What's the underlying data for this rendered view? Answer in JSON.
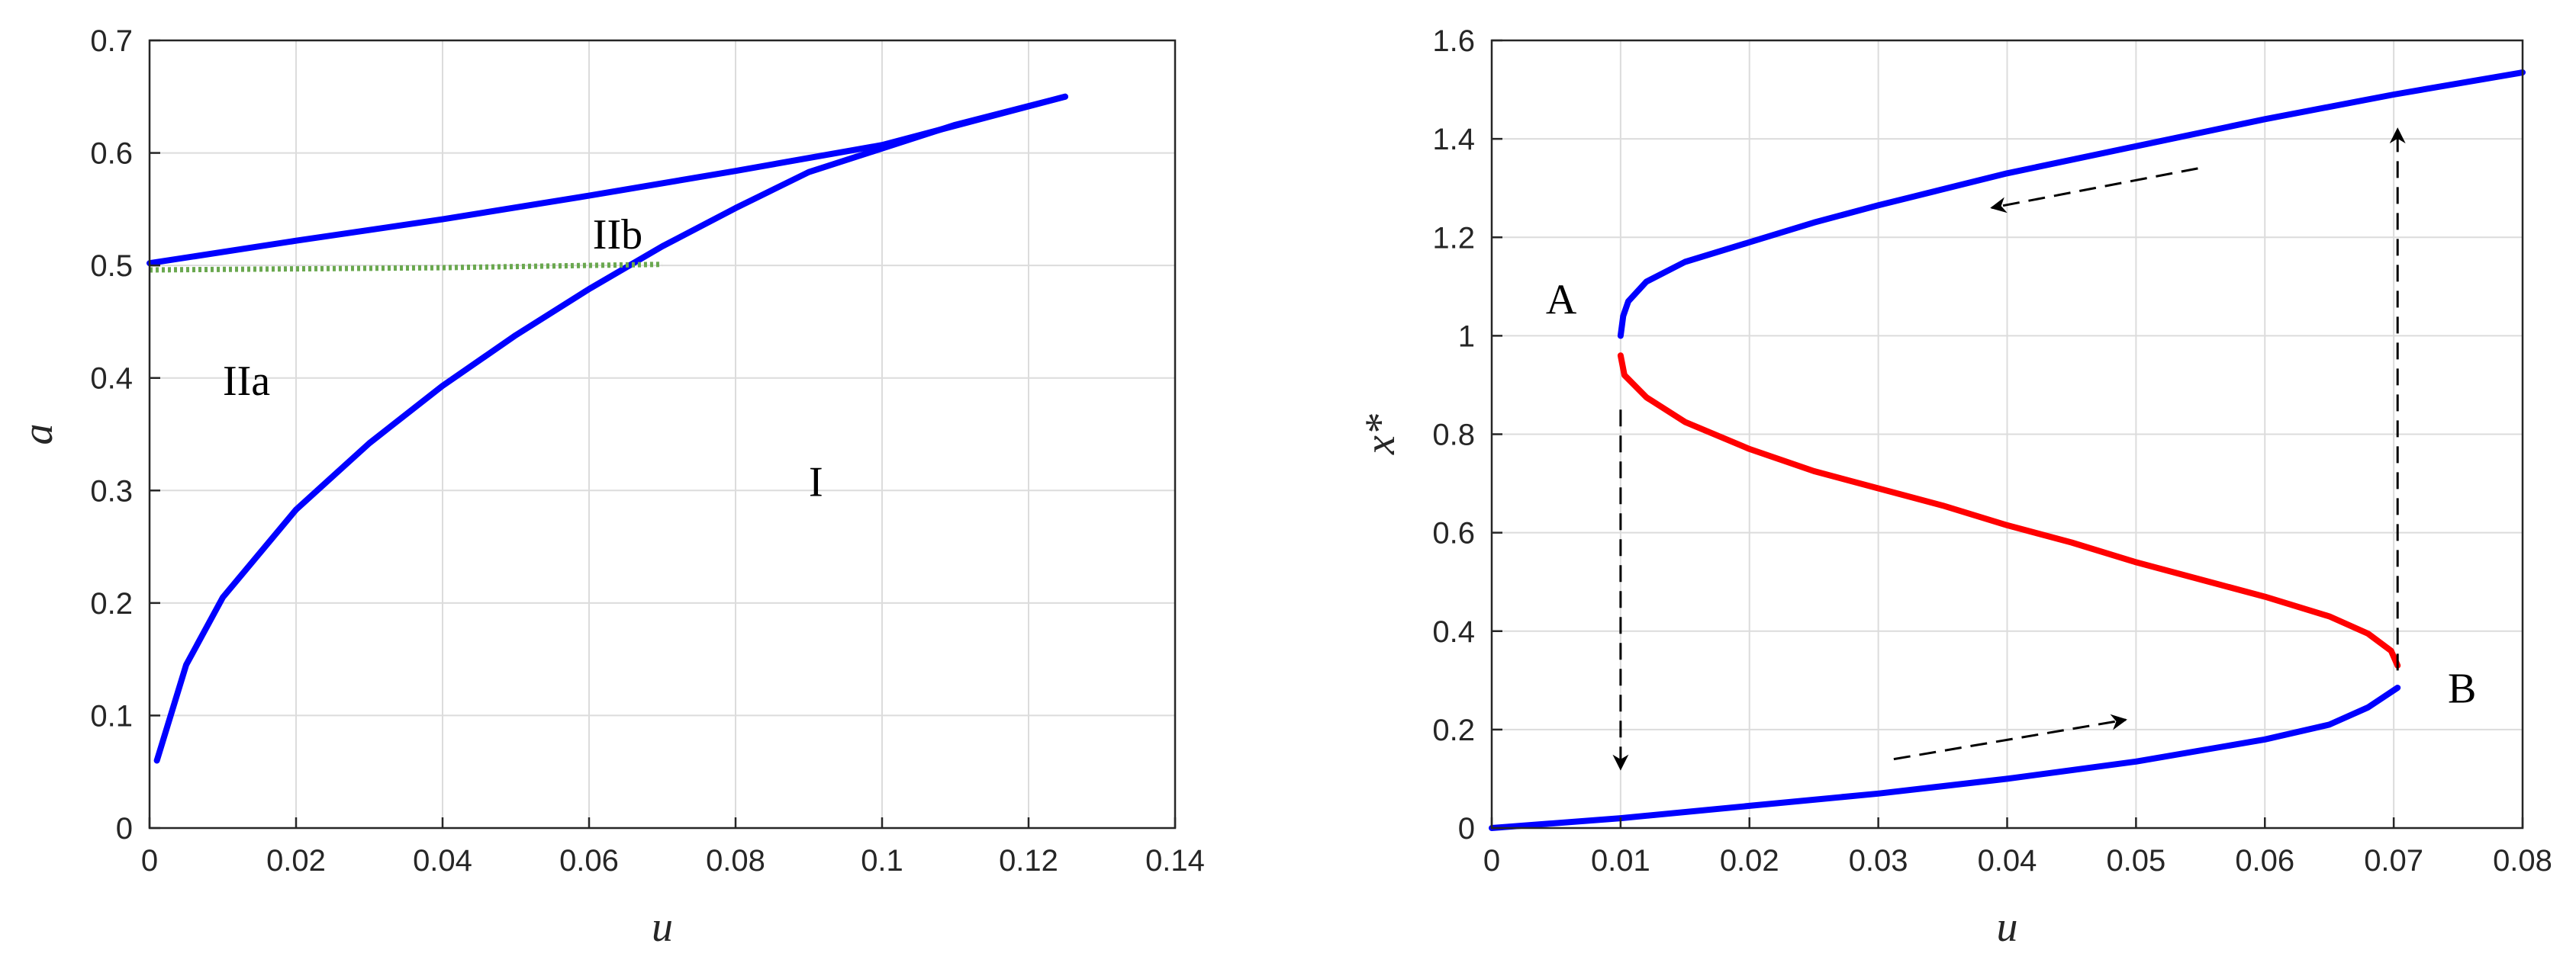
{
  "chart_data": [
    {
      "type": "line",
      "xlabel": "u",
      "ylabel": "a",
      "xlim": [
        0,
        0.14
      ],
      "ylim": [
        0,
        0.7
      ],
      "xticks": [
        0,
        0.02,
        0.04,
        0.06,
        0.08,
        0.1,
        0.12,
        0.14
      ],
      "yticks": [
        0,
        0.1,
        0.2,
        0.3,
        0.4,
        0.5,
        0.6,
        0.7
      ],
      "xtick_labels": [
        "0",
        "0.02",
        "0.04",
        "0.06",
        "0.08",
        "0.1",
        "0.12",
        "0.14"
      ],
      "ytick_labels": [
        "0",
        "0.1",
        "0.2",
        "0.3",
        "0.4",
        "0.5",
        "0.6",
        "0.7"
      ],
      "grid": true,
      "series": [
        {
          "color": "#0000ff",
          "style": "solid",
          "x": [
            0,
            0.02,
            0.04,
            0.06,
            0.08,
            0.1,
            0.125
          ],
          "y": [
            0.502,
            0.522,
            0.541,
            0.562,
            0.584,
            0.607,
            0.65
          ]
        },
        {
          "color": "#0000ff",
          "style": "solid",
          "x": [
            0.001,
            0.005,
            0.01,
            0.02,
            0.03,
            0.04,
            0.05,
            0.06,
            0.07,
            0.08,
            0.09,
            0.1,
            0.11,
            0.125
          ],
          "y": [
            0.06,
            0.145,
            0.205,
            0.283,
            0.342,
            0.393,
            0.438,
            0.479,
            0.517,
            0.551,
            0.583,
            0.604,
            0.625,
            0.65
          ]
        },
        {
          "color": "#6aa84f",
          "style": "dotted",
          "x": [
            0,
            0.02,
            0.04,
            0.06,
            0.07
          ],
          "y": [
            0.496,
            0.497,
            0.498,
            0.5,
            0.501
          ]
        }
      ],
      "annotations": [
        {
          "text": "IIb",
          "x": 0.0605,
          "y": 0.515
        },
        {
          "text": "IIa",
          "x": 0.01,
          "y": 0.385
        },
        {
          "text": "I",
          "x": 0.09,
          "y": 0.295
        }
      ]
    },
    {
      "type": "line",
      "xlabel": "u",
      "ylabel": "x*",
      "xlim": [
        0,
        0.08
      ],
      "ylim": [
        0,
        1.6
      ],
      "xticks": [
        0,
        0.01,
        0.02,
        0.03,
        0.04,
        0.05,
        0.06,
        0.07,
        0.08
      ],
      "yticks": [
        0,
        0.2,
        0.4,
        0.6,
        0.8,
        1,
        1.2,
        1.4,
        1.6
      ],
      "xtick_labels": [
        "0",
        "0.01",
        "0.02",
        "0.03",
        "0.04",
        "0.05",
        "0.06",
        "0.07",
        "0.08"
      ],
      "ytick_labels": [
        "0",
        "0.2",
        "0.4",
        "0.6",
        "0.8",
        "1",
        "1.2",
        "1.4",
        "1.6"
      ],
      "grid": true,
      "series": [
        {
          "color": "#0000ff",
          "style": "solid",
          "x": [
            0.01,
            0.0102,
            0.0106,
            0.012,
            0.015,
            0.02,
            0.025,
            0.03,
            0.04,
            0.05,
            0.06,
            0.07,
            0.08
          ],
          "y": [
            1.0,
            1.04,
            1.07,
            1.11,
            1.15,
            1.19,
            1.23,
            1.265,
            1.33,
            1.385,
            1.44,
            1.49,
            1.535
          ]
        },
        {
          "color": "#ff0000",
          "style": "solid",
          "x": [
            0.01,
            0.0103,
            0.012,
            0.015,
            0.02,
            0.025,
            0.03,
            0.035,
            0.04,
            0.045,
            0.05,
            0.055,
            0.06,
            0.065,
            0.068,
            0.0698,
            0.0703
          ],
          "y": [
            0.96,
            0.92,
            0.875,
            0.825,
            0.77,
            0.725,
            0.69,
            0.655,
            0.615,
            0.58,
            0.54,
            0.505,
            0.47,
            0.43,
            0.395,
            0.36,
            0.33
          ]
        },
        {
          "color": "#0000ff",
          "style": "solid",
          "x": [
            0,
            0.01,
            0.02,
            0.03,
            0.04,
            0.05,
            0.06,
            0.065,
            0.068,
            0.0703
          ],
          "y": [
            0.0,
            0.02,
            0.045,
            0.07,
            0.1,
            0.135,
            0.18,
            0.21,
            0.245,
            0.285
          ]
        }
      ],
      "arrows": [
        {
          "x1": 0.01,
          "y1": 0.85,
          "x2": 0.01,
          "y2": 0.12
        },
        {
          "x1": 0.0703,
          "y1": 0.32,
          "x2": 0.0703,
          "y2": 1.42
        },
        {
          "x1": 0.0548,
          "y1": 1.34,
          "x2": 0.0388,
          "y2": 1.26
        },
        {
          "x1": 0.0312,
          "y1": 0.14,
          "x2": 0.0492,
          "y2": 0.22
        }
      ],
      "annotations": [
        {
          "text": "A",
          "x": 0.0042,
          "y": 1.045
        },
        {
          "text": "B",
          "x": 0.0742,
          "y": 0.255
        }
      ]
    }
  ]
}
